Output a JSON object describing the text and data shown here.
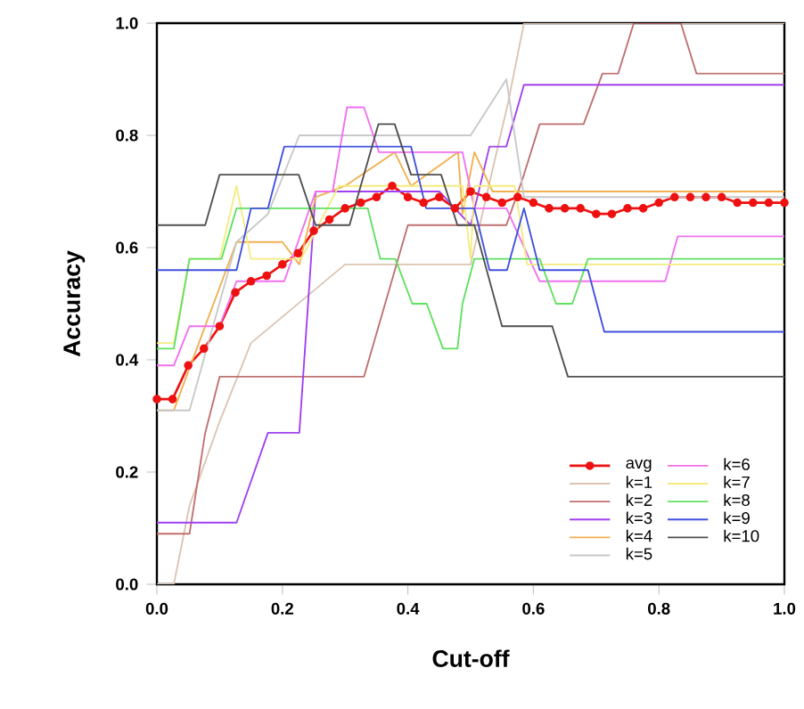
{
  "chart_data": {
    "type": "line",
    "xlabel": "Cut-off",
    "ylabel": "Accuracy",
    "xlim": [
      0,
      1
    ],
    "ylim": [
      0,
      1
    ],
    "xticks": [
      {
        "value": 0,
        "label": "0.0"
      },
      {
        "value": 0.2,
        "label": "0.2"
      },
      {
        "value": 0.4,
        "label": "0.4"
      },
      {
        "value": 0.6,
        "label": "0.6"
      },
      {
        "value": 0.8,
        "label": "0.8"
      },
      {
        "value": 1,
        "label": "1.0"
      }
    ],
    "yticks": [
      {
        "value": 0,
        "label": "0.0"
      },
      {
        "value": 0.2,
        "label": "0.2"
      },
      {
        "value": 0.4,
        "label": "0.4"
      },
      {
        "value": 0.6,
        "label": "0.6"
      },
      {
        "value": 0.8,
        "label": "0.8"
      },
      {
        "value": 1,
        "label": "1.0"
      }
    ],
    "legend": "bottom right",
    "grid": false,
    "series": [
      {
        "name": "avg",
        "color": "#ee1111",
        "marker": "circle",
        "x": [
          0,
          0.025,
          0.05,
          0.075,
          0.1,
          0.125,
          0.15,
          0.175,
          0.2,
          0.225,
          0.25,
          0.275,
          0.3,
          0.325,
          0.35,
          0.375,
          0.4,
          0.425,
          0.45,
          0.475,
          0.5,
          0.525,
          0.55,
          0.575,
          0.6,
          0.625,
          0.65,
          0.675,
          0.7,
          0.725,
          0.75,
          0.775,
          0.8,
          0.825,
          0.85,
          0.875,
          0.9,
          0.925,
          0.95,
          0.975,
          1
        ],
        "values": [
          0.33,
          0.33,
          0.39,
          0.42,
          0.46,
          0.52,
          0.54,
          0.55,
          0.57,
          0.59,
          0.63,
          0.65,
          0.67,
          0.68,
          0.69,
          0.71,
          0.69,
          0.68,
          0.69,
          0.67,
          0.7,
          0.69,
          0.68,
          0.69,
          0.68,
          0.67,
          0.67,
          0.67,
          0.66,
          0.66,
          0.67,
          0.67,
          0.68,
          0.69,
          0.69,
          0.69,
          0.69,
          0.68,
          0.68,
          0.68,
          0.68
        ]
      },
      {
        "name": "k=1",
        "color": "#dcc4b2",
        "marker": "none",
        "x": [
          0,
          0.027,
          0.052,
          0.1,
          0.15,
          0.3,
          0.5,
          0.56,
          0.585,
          1
        ],
        "values": [
          0,
          0,
          0.14,
          0.29,
          0.43,
          0.57,
          0.57,
          0.86,
          1,
          1
        ]
      },
      {
        "name": "k=2",
        "color": "#c07070",
        "marker": "none",
        "x": [
          0,
          0.052,
          0.077,
          0.1,
          0.33,
          0.4,
          0.557,
          0.585,
          0.61,
          0.68,
          0.71,
          0.735,
          0.76,
          0.835,
          0.86,
          1
        ],
        "values": [
          0.09,
          0.09,
          0.27,
          0.37,
          0.37,
          0.64,
          0.64,
          0.73,
          0.82,
          0.82,
          0.91,
          0.91,
          1,
          1,
          0.91,
          0.91
        ]
      },
      {
        "name": "k=3",
        "color": "#a040f0",
        "marker": "none",
        "x": [
          0,
          0.127,
          0.177,
          0.227,
          0.253,
          0.45,
          0.5,
          0.53,
          0.557,
          0.585,
          1
        ],
        "values": [
          0.11,
          0.11,
          0.27,
          0.27,
          0.7,
          0.7,
          0.64,
          0.78,
          0.78,
          0.89,
          0.89
        ]
      },
      {
        "name": "k=4",
        "color": "#f0b050",
        "marker": "none",
        "x": [
          0,
          0.027,
          0.077,
          0.127,
          0.2,
          0.227,
          0.253,
          0.3,
          0.379,
          0.405,
          0.48,
          0.487,
          0.506,
          0.535,
          1
        ],
        "values": [
          0.31,
          0.31,
          0.46,
          0.61,
          0.61,
          0.57,
          0.69,
          0.71,
          0.77,
          0.71,
          0.77,
          0.66,
          0.77,
          0.7,
          0.7
        ]
      },
      {
        "name": "k=5",
        "color": "#c8c8c8",
        "marker": "none",
        "x": [
          0,
          0.052,
          0.077,
          0.127,
          0.177,
          0.227,
          0.5,
          0.557,
          0.585,
          1
        ],
        "values": [
          0.31,
          0.31,
          0.41,
          0.61,
          0.66,
          0.8,
          0.8,
          0.9,
          0.69,
          0.69
        ]
      },
      {
        "name": "k=6",
        "color": "#f070f0",
        "marker": "none",
        "x": [
          0,
          0.027,
          0.052,
          0.1,
          0.127,
          0.203,
          0.253,
          0.28,
          0.303,
          0.33,
          0.354,
          0.453,
          0.487,
          0.506,
          0.557,
          0.61,
          0.81,
          0.83,
          1
        ],
        "values": [
          0.39,
          0.39,
          0.46,
          0.46,
          0.54,
          0.54,
          0.7,
          0.7,
          0.85,
          0.85,
          0.77,
          0.77,
          0.77,
          0.67,
          0.67,
          0.54,
          0.54,
          0.62,
          0.62
        ]
      },
      {
        "name": "k=7",
        "color": "#f4ec80",
        "marker": "none",
        "x": [
          0,
          0.027,
          0.052,
          0.1,
          0.127,
          0.15,
          0.23,
          0.29,
          0.487,
          0.5,
          0.506,
          0.57,
          0.59,
          1
        ],
        "values": [
          0.43,
          0.43,
          0.58,
          0.58,
          0.71,
          0.58,
          0.58,
          0.71,
          0.71,
          0.58,
          0.71,
          0.71,
          0.57,
          0.57
        ]
      },
      {
        "name": "k=8",
        "color": "#60e060",
        "marker": "none",
        "x": [
          0,
          0.027,
          0.052,
          0.103,
          0.127,
          0.336,
          0.356,
          0.38,
          0.407,
          0.43,
          0.456,
          0.479,
          0.487,
          0.506,
          0.61,
          0.636,
          0.662,
          0.687,
          1
        ],
        "values": [
          0.42,
          0.42,
          0.58,
          0.58,
          0.67,
          0.67,
          0.58,
          0.58,
          0.5,
          0.5,
          0.42,
          0.42,
          0.5,
          0.58,
          0.58,
          0.5,
          0.5,
          0.58,
          0.58
        ]
      },
      {
        "name": "k=9",
        "color": "#4050e0",
        "marker": "none",
        "x": [
          0,
          0.127,
          0.15,
          0.177,
          0.203,
          0.405,
          0.429,
          0.506,
          0.53,
          0.558,
          0.585,
          0.61,
          0.687,
          0.713,
          1
        ],
        "values": [
          0.56,
          0.56,
          0.67,
          0.67,
          0.78,
          0.78,
          0.67,
          0.67,
          0.56,
          0.56,
          0.67,
          0.56,
          0.56,
          0.45,
          0.45
        ]
      },
      {
        "name": "k=10",
        "color": "#505050",
        "marker": "none",
        "x": [
          0,
          0.077,
          0.1,
          0.226,
          0.253,
          0.307,
          0.353,
          0.379,
          0.405,
          0.453,
          0.479,
          0.506,
          0.55,
          0.63,
          0.655,
          1
        ],
        "values": [
          0.64,
          0.64,
          0.73,
          0.73,
          0.64,
          0.64,
          0.82,
          0.82,
          0.73,
          0.73,
          0.64,
          0.64,
          0.46,
          0.46,
          0.37,
          0.37
        ]
      }
    ]
  }
}
